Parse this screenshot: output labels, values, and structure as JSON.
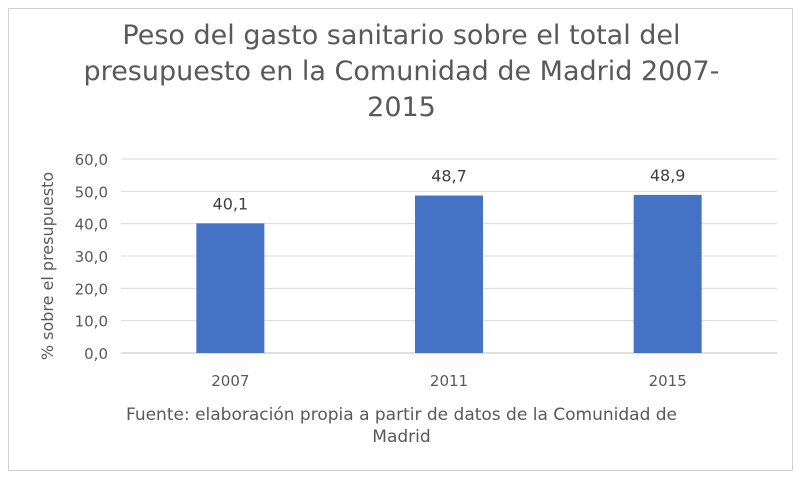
{
  "chart_data": {
    "type": "bar",
    "title_lines": [
      "Peso del gasto sanitario sobre el total del",
      "presupuesto en la Comunidad de Madrid 2007-",
      "2015"
    ],
    "categories": [
      "2007",
      "2011",
      "2015"
    ],
    "values": [
      40.1,
      48.7,
      48.9
    ],
    "data_labels": [
      "40,1",
      "48,7",
      "48,9"
    ],
    "ylabel": "% sobre el presupuesto",
    "xlabel": "",
    "ylim": [
      0,
      60
    ],
    "yticks": [
      "0,0",
      "10,0",
      "20,0",
      "30,0",
      "40,0",
      "50,0",
      "60,0"
    ],
    "grid": true,
    "legend": "none",
    "bar_color": "#4472c4",
    "source_lines": [
      "Fuente: elaboración propia a partir de datos de la Comunidad de",
      "Madrid"
    ]
  }
}
